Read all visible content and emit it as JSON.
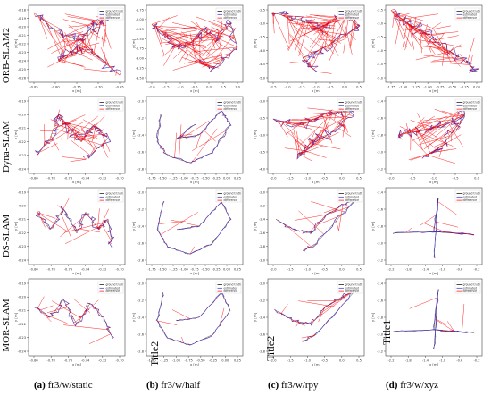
{
  "figure": {
    "row_labels": [
      "ORB-SLAM2",
      "Dyna-SLAM",
      "DS-SLAM",
      "MOR-SLAM"
    ],
    "col_captions": [
      {
        "tag": "(a)",
        "text": " fr3/w/static"
      },
      {
        "tag": "(b)",
        "text": " fr3/w/half"
      },
      {
        "tag": "(c)",
        "text": " fr3/w/rpy"
      },
      {
        "tag": "(d)",
        "text": " fr3/w/xyz"
      }
    ],
    "overlay_titles": [
      "Title2",
      "Title2",
      "Title1"
    ],
    "colors": {
      "ground_truth": "#000000",
      "estimated": "#3333cc",
      "difference": "#ff0000"
    }
  },
  "chart_data": [
    {
      "type": "line",
      "row": "ORB-SLAM2",
      "col": "fr3/w/static",
      "legend": [
        "ground truth",
        "estimated",
        "difference"
      ],
      "xlabel": "x [m]",
      "ylabel": "y [m]",
      "xticks": [
        "-0.85",
        "-0.80",
        "-0.75",
        "-0.70",
        "-0.65"
      ],
      "yticks": [
        "-0.18",
        "-0.19",
        "-0.20",
        "-0.21",
        "-0.22",
        "-0.23",
        "-0.24",
        "-0.25",
        "-0.26"
      ]
    },
    {
      "type": "line",
      "row": "ORB-SLAM2",
      "col": "fr3/w/half",
      "legend": [
        "ground truth",
        "estimated",
        "difference"
      ],
      "xlabel": "x [m]",
      "ylabel": "y [m]",
      "xticks": [
        "-2.0",
        "-1.5",
        "-1.0",
        "-0.5",
        "0.0",
        "0.5",
        "1.0"
      ],
      "yticks": [
        "-1.75",
        "-2.00",
        "-2.25",
        "-2.50",
        "-2.75",
        "-3.00",
        "-3.25",
        "-3.50"
      ]
    },
    {
      "type": "line",
      "row": "ORB-SLAM2",
      "col": "fr3/w/rpy",
      "legend": [
        "ground truth",
        "estimated",
        "difference"
      ],
      "xlabel": "x [m]",
      "ylabel": "y [m]",
      "xticks": [
        "-2.5",
        "-2.0",
        "-1.5",
        "-1.0",
        "-0.5",
        "0.0",
        "0.5"
      ],
      "yticks": [
        "-2.5",
        "-3.0",
        "-3.5",
        "-4.0",
        "-4.5",
        "-5.0"
      ]
    },
    {
      "type": "line",
      "row": "ORB-SLAM2",
      "col": "fr3/w/xyz",
      "legend": [
        "ground truth",
        "estimated",
        "difference"
      ],
      "xlabel": "x [m]",
      "ylabel": "y [m]",
      "xticks": [
        "-1.75",
        "-1.50",
        "-1.25",
        "-1.00",
        "-0.75",
        "-0.50",
        "-0.25",
        "0.00"
      ],
      "yticks": [
        "-2.5",
        "-3.0",
        "-3.5",
        "-4.0",
        "-4.5",
        "-5.0"
      ]
    },
    {
      "type": "line",
      "row": "Dyna-SLAM",
      "col": "fr3/w/static",
      "legend": [
        "ground truth",
        "estimated",
        "difference"
      ],
      "xlabel": "x [m]",
      "ylabel": "y [m]",
      "xticks": [
        "-0.80",
        "-0.78",
        "-0.76",
        "-0.74",
        "-0.72",
        "-0.70"
      ],
      "yticks": [
        "-0.19",
        "-0.20",
        "-0.21",
        "-0.22",
        "-0.23",
        "-0.24"
      ]
    },
    {
      "type": "line",
      "row": "Dyna-SLAM",
      "col": "fr3/w/half",
      "legend": [
        "ground truth",
        "estimated",
        "difference"
      ],
      "xlabel": "x [m]",
      "ylabel": "y [m]",
      "xticks": [
        "-1.75",
        "-1.50",
        "-1.25",
        "-1.00",
        "-0.75",
        "-0.50",
        "-0.25",
        "0.00",
        "0.25"
      ],
      "yticks": [
        "-2.0",
        "-2.2",
        "-2.4",
        "-2.6",
        "-2.8"
      ]
    },
    {
      "type": "line",
      "row": "Dyna-SLAM",
      "col": "fr3/w/rpy",
      "legend": [
        "ground truth",
        "estimated",
        "difference"
      ],
      "xlabel": "x [m]",
      "ylabel": "y [m]",
      "xticks": [
        "-2.0",
        "-1.5",
        "-1.0",
        "-0.5",
        "0.0",
        "0.5"
      ],
      "yticks": [
        "-2.0",
        "-2.5",
        "-3.0",
        "-3.5",
        "-4.0"
      ]
    },
    {
      "type": "line",
      "row": "Dyna-SLAM",
      "col": "fr3/w/xyz",
      "legend": [
        "ground truth",
        "estimated",
        "difference"
      ],
      "xlabel": "x [m]",
      "ylabel": "y [m]",
      "xticks": [
        "-2.0",
        "-1.5",
        "-1.0",
        "-0.5",
        "0.0"
      ],
      "yticks": [
        "-2.4",
        "-2.6",
        "-2.8",
        "-3.0",
        "-3.2"
      ]
    },
    {
      "type": "line",
      "row": "DS-SLAM",
      "col": "fr3/w/static",
      "legend": [
        "ground truth",
        "estimated",
        "difference"
      ],
      "xlabel": "x [m]",
      "ylabel": "y [m]",
      "xticks": [
        "-0.80",
        "-0.78",
        "-0.76",
        "-0.74",
        "-0.72",
        "-0.70"
      ],
      "yticks": [
        "-0.19",
        "-0.20",
        "-0.21",
        "-0.22",
        "-0.23",
        "-0.24"
      ]
    },
    {
      "type": "line",
      "row": "DS-SLAM",
      "col": "fr3/w/half",
      "legend": [
        "ground truth",
        "estimated",
        "difference"
      ],
      "xlabel": "x [m]",
      "ylabel": "y [m]",
      "xticks": [
        "-1.75",
        "-1.50",
        "-1.25",
        "-1.00",
        "-0.75",
        "-0.50",
        "-0.25",
        "0.00",
        "0.25"
      ],
      "yticks": [
        "-2.0",
        "-2.2",
        "-2.4",
        "-2.6",
        "-2.8"
      ]
    },
    {
      "type": "line",
      "row": "DS-SLAM",
      "col": "fr3/w/rpy",
      "legend": [
        "ground truth",
        "estimated",
        "difference"
      ],
      "xlabel": "x [m]",
      "ylabel": "y [m]",
      "xticks": [
        "-2.0",
        "-1.5",
        "-1.0",
        "-0.5",
        "0.0",
        "0.5"
      ],
      "yticks": [
        "-2.0",
        "-2.2",
        "-2.4",
        "-2.6",
        "-2.8",
        "-3.0"
      ]
    },
    {
      "type": "line",
      "row": "DS-SLAM",
      "col": "fr3/w/xyz",
      "legend": [
        "ground truth",
        "estimated",
        "difference"
      ],
      "xlabel": "x [m]",
      "ylabel": "y [m]",
      "xticks": [
        "-2.2",
        "-1.8",
        "-1.4",
        "-1.0",
        "-0.6",
        "-0.2"
      ],
      "yticks": [
        "-2.4",
        "-2.6",
        "-2.8",
        "-3.0",
        "-3.2"
      ]
    },
    {
      "type": "line",
      "row": "MOR-SLAM",
      "col": "fr3/w/static",
      "legend": [
        "ground truth",
        "estimated",
        "difference"
      ],
      "xlabel": "x [m]",
      "ylabel": "y [m]",
      "xticks": [
        "-0.80",
        "-0.78",
        "-0.76",
        "-0.74",
        "-0.72",
        "-0.70"
      ],
      "yticks": [
        "-0.19",
        "-0.20",
        "-0.21",
        "-0.22",
        "-0.23",
        "-0.24"
      ]
    },
    {
      "type": "line",
      "row": "MOR-SLAM",
      "col": "fr3/w/half",
      "legend": [
        "ground truth",
        "estimated",
        "difference"
      ],
      "xlabel": "x [m]",
      "ylabel": "y [m]",
      "xticks": [
        "-1.50",
        "-1.25",
        "-1.00",
        "-0.75",
        "-0.50",
        "-0.25",
        "0.00",
        "0.25"
      ],
      "yticks": [
        "-2.0",
        "-2.2",
        "-2.4",
        "-2.6",
        "-2.8"
      ]
    },
    {
      "type": "line",
      "row": "MOR-SLAM",
      "col": "fr3/w/rpy",
      "legend": [
        "ground truth",
        "estimated",
        "difference"
      ],
      "xlabel": "x [m]",
      "ylabel": "y [m]",
      "xticks": [
        "-2.0",
        "-1.5",
        "-1.0",
        "-0.5",
        "0.0",
        "0.5"
      ],
      "yticks": [
        "-2.0",
        "-2.2",
        "-2.4",
        "-2.6",
        "-2.8"
      ]
    },
    {
      "type": "line",
      "row": "MOR-SLAM",
      "col": "fr3/w/xyz",
      "legend": [
        "ground truth",
        "estimated",
        "difference"
      ],
      "xlabel": "x [m]",
      "ylabel": "y [m]",
      "xticks": [
        "-2.2",
        "-1.8",
        "-1.4",
        "-1.0",
        "-0.6",
        "-0.2"
      ],
      "yticks": [
        "-2.4",
        "-2.6",
        "-2.8",
        "-3.0",
        "-3.2"
      ]
    }
  ]
}
